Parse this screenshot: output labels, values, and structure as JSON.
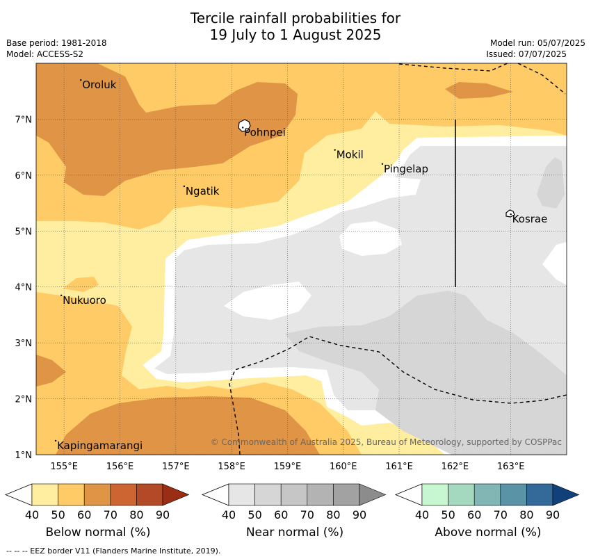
{
  "title_line1": "Tercile rainfall probabilities for",
  "title_line2": "19 July to 1 August 2025",
  "base_period": "Base period: 1981-2018",
  "model": "Model: ACCESS-S2",
  "model_run": "Model run: 05/07/2025",
  "issued": "Issued: 07/07/2025",
  "copyright": "© Commonwealth of Australia 2025, Bureau of Meteorology, supported by COSPPac",
  "footnote": "--  --  -- EEZ border V11 (Flanders Marine Institute, 2019).",
  "map": {
    "lon_range": [
      154.5,
      164.0
    ],
    "lat_range": [
      1.0,
      8.0
    ],
    "lon_ticks": [
      {
        "value": 155,
        "label": "155°E"
      },
      {
        "value": 156,
        "label": "156°E"
      },
      {
        "value": 157,
        "label": "157°E"
      },
      {
        "value": 158,
        "label": "158°E"
      },
      {
        "value": 159,
        "label": "159°E"
      },
      {
        "value": 160,
        "label": "160°E"
      },
      {
        "value": 161,
        "label": "161°E"
      },
      {
        "value": 162,
        "label": "162°E"
      },
      {
        "value": 163,
        "label": "163°E"
      }
    ],
    "lat_ticks": [
      {
        "value": 1,
        "label": "1°N"
      },
      {
        "value": 2,
        "label": "2°N"
      },
      {
        "value": 3,
        "label": "3°N"
      },
      {
        "value": 4,
        "label": "4°N"
      },
      {
        "value": 5,
        "label": "5°N"
      },
      {
        "value": 6,
        "label": "6°N"
      },
      {
        "value": 7,
        "label": "7°N"
      }
    ],
    "places": [
      {
        "name": "Oroluk",
        "lon": 155.3,
        "lat": 7.7
      },
      {
        "name": "Pohnpei",
        "lon": 158.2,
        "lat": 6.85
      },
      {
        "name": "Mokil",
        "lon": 159.85,
        "lat": 6.45
      },
      {
        "name": "Pingelap",
        "lon": 160.7,
        "lat": 6.2
      },
      {
        "name": "Ngatik",
        "lon": 157.15,
        "lat": 5.8
      },
      {
        "name": "Kosrae",
        "lon": 163.0,
        "lat": 5.3
      },
      {
        "name": "Nukuoro",
        "lon": 154.95,
        "lat": 3.85
      },
      {
        "name": "Kapingamarangi",
        "lon": 154.85,
        "lat": 1.25
      }
    ]
  },
  "colorbars": [
    {
      "label": "Below normal (%)",
      "colors": [
        "#ffeda0",
        "#fecb66",
        "#e09445",
        "#cc6532",
        "#b34a27",
        "#9a2d14"
      ],
      "ticks": [
        "40",
        "50",
        "60",
        "70",
        "80",
        "90"
      ]
    },
    {
      "label": "Near normal (%)",
      "colors": [
        "#e6e6e6",
        "#d6d6d6",
        "#c6c6c6",
        "#b3b3b3",
        "#a2a2a2",
        "#8c8c8c"
      ],
      "ticks": [
        "40",
        "50",
        "60",
        "70",
        "80",
        "90"
      ]
    },
    {
      "label": "Above normal (%)",
      "colors": [
        "#c7f7d0",
        "#a4d9c0",
        "#82b6b4",
        "#5a93a6",
        "#336a9a",
        "#12407a"
      ],
      "ticks": [
        "40",
        "50",
        "60",
        "70",
        "80",
        "90"
      ]
    }
  ]
}
